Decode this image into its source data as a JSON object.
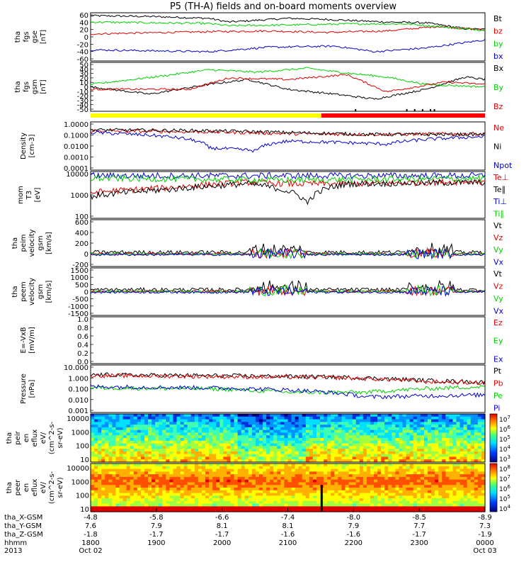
{
  "title": "P5 (TH-A) fields and on-board moments overview",
  "colors": {
    "black": "#000000",
    "red": "#e00000",
    "green": "#00d000",
    "blue": "#0000d0",
    "yellow": "#ffff00",
    "barRed": "#ff0000"
  },
  "chart_data": [
    {
      "type": "line",
      "panel": "fgs_gse",
      "ylabel_lines": [
        "tha",
        "fgs",
        "gse",
        "[nT]"
      ],
      "yticks": [
        60,
        40,
        20,
        0,
        -20,
        -40,
        -60
      ],
      "ylim": [
        -65,
        65
      ],
      "legend": [
        "Bt",
        "bz",
        "by",
        "bx"
      ],
      "series": [
        {
          "name": "Bt",
          "color": "black",
          "knots": [
            [
              0,
              57
            ],
            [
              0.15,
              55
            ],
            [
              0.3,
              50
            ],
            [
              0.35,
              40
            ],
            [
              0.5,
              50
            ],
            [
              0.6,
              47
            ],
            [
              0.75,
              40
            ],
            [
              0.85,
              38
            ],
            [
              0.95,
              22
            ],
            [
              1,
              20
            ]
          ]
        },
        {
          "name": "bz",
          "color": "red",
          "knots": [
            [
              0,
              8
            ],
            [
              0.3,
              14
            ],
            [
              0.45,
              16
            ],
            [
              0.6,
              12
            ],
            [
              0.75,
              16
            ],
            [
              0.88,
              28
            ],
            [
              1,
              18
            ]
          ]
        },
        {
          "name": "by",
          "color": "green",
          "knots": [
            [
              0,
              40
            ],
            [
              0.3,
              36
            ],
            [
              0.35,
              30
            ],
            [
              0.5,
              32
            ],
            [
              0.65,
              35
            ],
            [
              0.8,
              35
            ],
            [
              0.95,
              22
            ],
            [
              1,
              18
            ]
          ]
        },
        {
          "name": "bx",
          "color": "blue",
          "knots": [
            [
              0,
              -35
            ],
            [
              0.3,
              -40
            ],
            [
              0.45,
              -28
            ],
            [
              0.62,
              -25
            ],
            [
              0.72,
              -40
            ],
            [
              0.85,
              -30
            ],
            [
              1,
              -8
            ]
          ]
        }
      ]
    },
    {
      "type": "line",
      "panel": "fgs_gsm",
      "ylabel_lines": [
        "tha",
        "fgs",
        "gsm",
        "[nT]"
      ],
      "yticks": [
        50,
        40,
        30,
        20,
        10,
        0,
        -10,
        -20,
        -30,
        -40,
        -50
      ],
      "ylim": [
        -50,
        50
      ],
      "legend": [
        "Bx",
        "By",
        "Bz"
      ],
      "series": [
        {
          "name": "Bx",
          "color": "black",
          "knots": [
            [
              0,
              0
            ],
            [
              0.15,
              -15
            ],
            [
              0.3,
              5
            ],
            [
              0.4,
              15
            ],
            [
              0.5,
              -5
            ],
            [
              0.62,
              -15
            ],
            [
              0.72,
              -25
            ],
            [
              0.85,
              -5
            ],
            [
              0.95,
              20
            ],
            [
              1,
              15
            ]
          ]
        },
        {
          "name": "By",
          "color": "green",
          "knots": [
            [
              0,
              5
            ],
            [
              0.18,
              22
            ],
            [
              0.3,
              35
            ],
            [
              0.42,
              30
            ],
            [
              0.55,
              38
            ],
            [
              0.63,
              30
            ],
            [
              0.75,
              20
            ],
            [
              0.85,
              5
            ],
            [
              1,
              0
            ]
          ]
        },
        {
          "name": "Bz",
          "color": "red",
          "knots": [
            [
              0,
              -5
            ],
            [
              0.25,
              -5
            ],
            [
              0.35,
              18
            ],
            [
              0.5,
              15
            ],
            [
              0.65,
              25
            ],
            [
              0.75,
              -10
            ],
            [
              0.9,
              10
            ],
            [
              1,
              5
            ]
          ]
        }
      ]
    },
    {
      "type": "line",
      "panel": "density",
      "ylabel_lines": [
        "Density",
        "[cm-3]"
      ],
      "log": true,
      "ylim": [
        0.0001,
        10
      ],
      "yticks": [
        "1.0000",
        "0.1000",
        "0.0100",
        "0.0010",
        "0.0001"
      ],
      "legend": [
        "Ne",
        "Ni",
        "Npot"
      ],
      "series": [
        {
          "name": "Ne",
          "color": "red",
          "knots": [
            [
              0,
              1.2
            ],
            [
              0.3,
              0.9
            ],
            [
              0.5,
              0.6
            ],
            [
              0.7,
              0.5
            ],
            [
              1,
              0.6
            ]
          ]
        },
        {
          "name": "Ni",
          "color": "black",
          "knots": [
            [
              0,
              1.5
            ],
            [
              0.3,
              1.2
            ],
            [
              0.5,
              0.8
            ],
            [
              0.7,
              0.5
            ],
            [
              1,
              0.5
            ]
          ]
        },
        {
          "name": "Npot",
          "color": "blue",
          "knots": [
            [
              0,
              0.8
            ],
            [
              0.3,
              0.02
            ],
            [
              0.42,
              0.01
            ],
            [
              0.5,
              0.1
            ],
            [
              0.75,
              0.05
            ],
            [
              1,
              0.3
            ]
          ]
        }
      ]
    },
    {
      "type": "line",
      "panel": "temperature",
      "ylabel_lines": [
        "mom",
        "T3",
        "[eV]"
      ],
      "log": true,
      "ylim": [
        30,
        12000
      ],
      "yticks": [
        "10000",
        "1000",
        "100"
      ],
      "legend": [
        "Te⊥",
        "Te∥",
        "Ti⊥",
        "Ti∥"
      ],
      "series": [
        {
          "name": "Te⊥",
          "color": "red",
          "knots": [
            [
              0,
              800
            ],
            [
              0.2,
              1500
            ],
            [
              0.4,
              3000
            ],
            [
              0.5,
              2500
            ],
            [
              0.7,
              2500
            ],
            [
              1,
              3500
            ]
          ]
        },
        {
          "name": "Te∥",
          "color": "black",
          "knots": [
            [
              0,
              500
            ],
            [
              0.2,
              1200
            ],
            [
              0.4,
              2500
            ],
            [
              0.55,
              200
            ],
            [
              0.65,
              2500
            ],
            [
              1,
              3000
            ]
          ]
        },
        {
          "name": "Ti⊥",
          "color": "blue",
          "knots": [
            [
              0,
              7000
            ],
            [
              0.5,
              7000
            ],
            [
              1,
              7000
            ]
          ]
        },
        {
          "name": "Ti∥",
          "color": "green",
          "knots": [
            [
              0,
              5000
            ],
            [
              0.5,
              4000
            ],
            [
              1,
              5000
            ]
          ]
        }
      ]
    },
    {
      "type": "line",
      "panel": "peim_velocity",
      "ylabel_lines": [
        "tha",
        "peim",
        "velocity",
        "gsm",
        "[km/s]"
      ],
      "yticks": [
        600,
        400,
        200,
        0,
        -200
      ],
      "ylim": [
        -230,
        650
      ],
      "legend": [
        "Vt",
        "Vz",
        "Vy",
        "Vx"
      ],
      "series": [
        {
          "name": "Vt",
          "color": "black",
          "knots": [
            [
              0,
              30
            ],
            [
              1,
              30
            ]
          ]
        },
        {
          "name": "Vz",
          "color": "red",
          "knots": [
            [
              0,
              0
            ],
            [
              1,
              0
            ]
          ]
        },
        {
          "name": "Vy",
          "color": "green",
          "knots": [
            [
              0,
              0
            ],
            [
              1,
              0
            ]
          ]
        },
        {
          "name": "Vx",
          "color": "blue",
          "knots": [
            [
              0,
              -10
            ],
            [
              1,
              -10
            ]
          ]
        }
      ]
    },
    {
      "type": "line",
      "panel": "peem_velocity",
      "ylabel_lines": [
        "tha",
        "peem",
        "velocity",
        "gsm",
        "[km/s]"
      ],
      "yticks": [
        1500,
        1000,
        500,
        0,
        -500,
        -1000,
        -1500
      ],
      "ylim": [
        -1600,
        1600
      ],
      "legend": [
        "Vt",
        "Vz",
        "Vy",
        "Vx"
      ],
      "series": [
        {
          "name": "Vt",
          "color": "black",
          "knots": [
            [
              0,
              100
            ],
            [
              1,
              100
            ]
          ]
        },
        {
          "name": "Vz",
          "color": "red",
          "knots": [
            [
              0,
              0
            ],
            [
              1,
              0
            ]
          ]
        },
        {
          "name": "Vy",
          "color": "green",
          "knots": [
            [
              0,
              0
            ],
            [
              1,
              0
            ]
          ]
        },
        {
          "name": "Vx",
          "color": "blue",
          "knots": [
            [
              0,
              -50
            ],
            [
              1,
              -50
            ]
          ]
        }
      ]
    },
    {
      "type": "line",
      "panel": "efield",
      "ylabel_lines": [
        "E=-VxB",
        "[mV/m]"
      ],
      "yticks": [
        "1.0",
        "0.8",
        "0.6",
        "0.4",
        "0.2",
        "0.0"
      ],
      "ylim": [
        0,
        1
      ],
      "legend": [
        "Ez",
        "Ey",
        "Ex"
      ],
      "series": []
    },
    {
      "type": "line",
      "panel": "pressure",
      "ylabel_lines": [
        "Pressure",
        "[nPa]"
      ],
      "log": true,
      "ylim": [
        0.001,
        10
      ],
      "yticks": [
        "10.000",
        "1.000",
        "0.100",
        "0.010",
        "0.001"
      ],
      "legend": [
        "Pt",
        "Pb",
        "Pe",
        "Pi"
      ],
      "series": [
        {
          "name": "Pt",
          "color": "black",
          "knots": [
            [
              0,
              1.5
            ],
            [
              0.4,
              1.2
            ],
            [
              0.6,
              1.0
            ],
            [
              0.85,
              0.5
            ],
            [
              1,
              0.35
            ]
          ]
        },
        {
          "name": "Pb",
          "color": "red",
          "knots": [
            [
              0,
              1.3
            ],
            [
              0.4,
              1.0
            ],
            [
              0.6,
              0.9
            ],
            [
              0.85,
              0.4
            ],
            [
              1,
              0.3
            ]
          ]
        },
        {
          "name": "Pe",
          "color": "green",
          "knots": [
            [
              0,
              0.12
            ],
            [
              0.3,
              0.1
            ],
            [
              0.5,
              0.05
            ],
            [
              0.7,
              0.05
            ],
            [
              1,
              0.15
            ]
          ]
        },
        {
          "name": "Pi",
          "color": "blue",
          "knots": [
            [
              0,
              0.15
            ],
            [
              0.3,
              0.12
            ],
            [
              0.5,
              0.08
            ],
            [
              0.7,
              0.02
            ],
            [
              1,
              0.03
            ]
          ]
        }
      ]
    },
    {
      "type": "heatmap",
      "panel": "peir",
      "ylabel_lines": [
        "tha",
        "peir",
        "en",
        "eflux",
        "eV/",
        "(cm^2-s-",
        "sr-eV)"
      ],
      "yticks": [
        "10000",
        "1000",
        "100",
        "10"
      ],
      "colorbar": [
        "10^7",
        "10^6",
        "10^5",
        "10^4",
        "10^3"
      ]
    },
    {
      "type": "heatmap",
      "panel": "peer",
      "ylabel_lines": [
        "tha",
        "peer",
        "en",
        "eflux",
        "eV/",
        "(cm^2-s-",
        "sr-eV)"
      ],
      "yticks": [
        "10000",
        "1000",
        "100",
        "10"
      ],
      "colorbar": [
        "10^8",
        "10^7",
        "10^6",
        "10^5",
        "10^4"
      ]
    }
  ],
  "xaxis": {
    "rows": [
      {
        "label": "tha_X-GSM",
        "values": [
          "-4.8",
          "-5.8",
          "-6.6",
          "-7.4",
          "-8.0",
          "-8.5",
          "-8.9"
        ]
      },
      {
        "label": "tha_Y-GSM",
        "values": [
          "7.6",
          "7.9",
          "8.1",
          "8.1",
          "7.9",
          "7.7",
          "7.3"
        ]
      },
      {
        "label": "tha_Z-GSM",
        "values": [
          "-1.8",
          "-1.7",
          "-1.7",
          "-1.6",
          "-1.6",
          "-1.7",
          "-1.9"
        ]
      },
      {
        "label": "hhmm",
        "values": [
          "1800",
          "1900",
          "2000",
          "2100",
          "2200",
          "2300",
          "0000"
        ]
      },
      {
        "label": "2013",
        "values": [
          "Oct 02",
          "",
          "",
          "",
          "",
          "",
          "Oct 03"
        ]
      }
    ]
  }
}
